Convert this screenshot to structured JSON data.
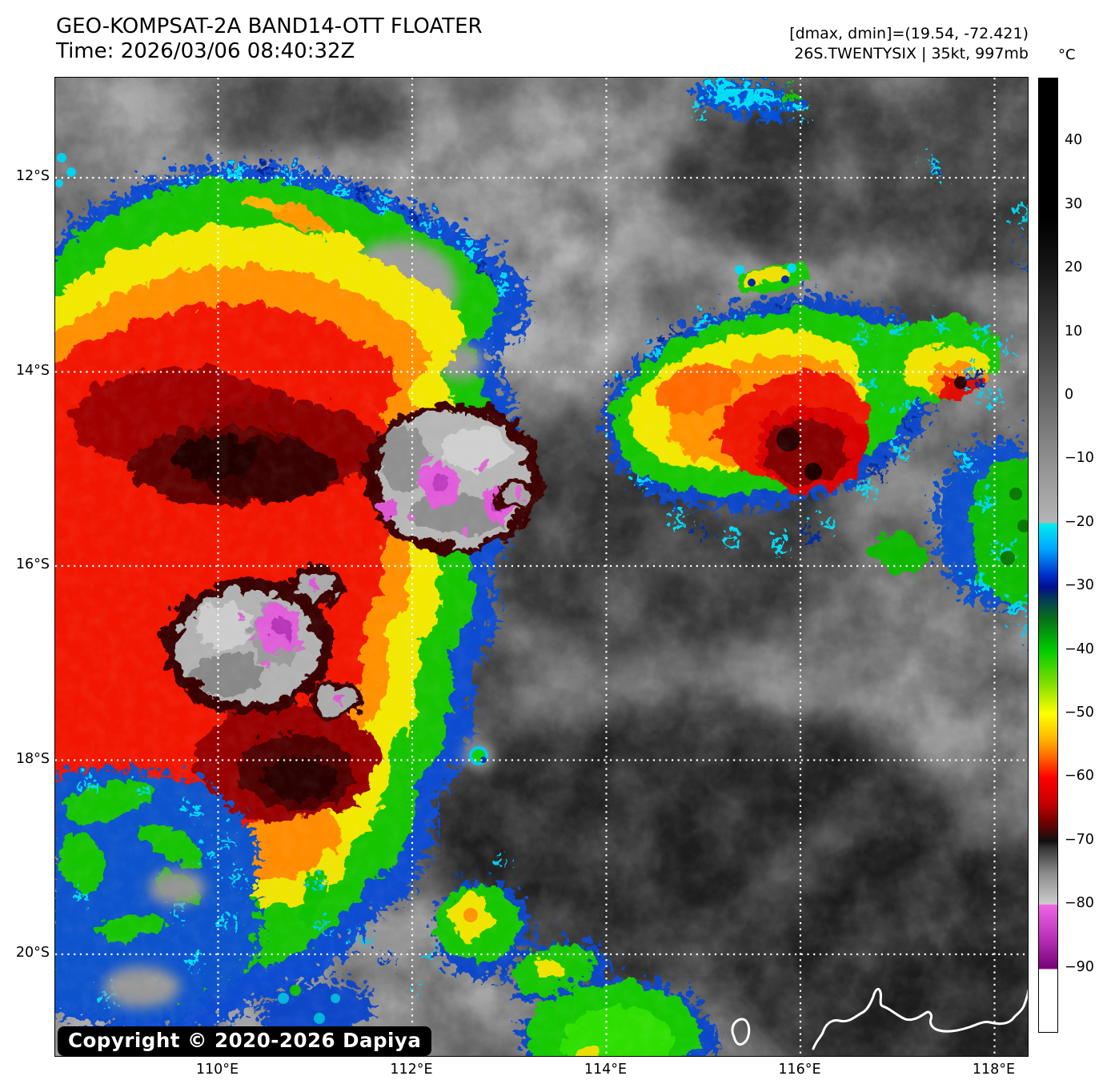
{
  "header": {
    "title": "GEO-KOMPSAT-2A BAND14-OTT FLOATER",
    "time_line": "Time: 2026/03/06 08:40:32Z"
  },
  "annotations": {
    "range_line": "[dmax, dmin]=(19.54, -72.421)",
    "storm_line": "26S.TWENTYSIX | 35kt, 997mb"
  },
  "footer": {
    "copyright": "Copyright © 2020-2026 Dapiya"
  },
  "colorbar": {
    "unit": "°C",
    "top_value": 50,
    "bottom_value": -100,
    "ticks": [
      40,
      30,
      20,
      10,
      0,
      -10,
      -20,
      -30,
      -40,
      -50,
      -60,
      -70,
      -80,
      -90
    ],
    "palette": [
      {
        "t": 50,
        "c": "#000000"
      },
      {
        "t": 28,
        "c": "#000000"
      },
      {
        "t": 20,
        "c": "#161616"
      },
      {
        "t": 10,
        "c": "#3c3c3c"
      },
      {
        "t": 0,
        "c": "#656565"
      },
      {
        "t": -10,
        "c": "#8f8f8f"
      },
      {
        "t": -19.9,
        "c": "#b5b5b5"
      },
      {
        "t": -20,
        "c": "#00eeee"
      },
      {
        "t": -24,
        "c": "#00a6ff"
      },
      {
        "t": -28,
        "c": "#0033cc"
      },
      {
        "t": -30,
        "c": "#000e90"
      },
      {
        "t": -32,
        "c": "#053c55"
      },
      {
        "t": -35,
        "c": "#067018"
      },
      {
        "t": -40,
        "c": "#00cc00"
      },
      {
        "t": -45,
        "c": "#7ddd00"
      },
      {
        "t": -50,
        "c": "#ffff00"
      },
      {
        "t": -54,
        "c": "#ffb400"
      },
      {
        "t": -57,
        "c": "#ff6000"
      },
      {
        "t": -60,
        "c": "#ff0000"
      },
      {
        "t": -64,
        "c": "#c80000"
      },
      {
        "t": -67,
        "c": "#730000"
      },
      {
        "t": -70,
        "c": "#101010"
      },
      {
        "t": -71,
        "c": "#343434"
      },
      {
        "t": -75,
        "c": "#8a8a8a"
      },
      {
        "t": -79.9,
        "c": "#cdcdcd"
      },
      {
        "t": -80,
        "c": "#ee66e2"
      },
      {
        "t": -85,
        "c": "#bb33bb"
      },
      {
        "t": -90,
        "c": "#770077"
      },
      {
        "t": -90.2,
        "c": "#ffffff"
      },
      {
        "t": -100,
        "c": "#ffffff"
      }
    ]
  },
  "map_axes": {
    "lat_ticks": [
      {
        "deg": -12,
        "label": "12°S"
      },
      {
        "deg": -14,
        "label": "14°S"
      },
      {
        "deg": -16,
        "label": "16°S"
      },
      {
        "deg": -18,
        "label": "18°S"
      },
      {
        "deg": -20,
        "label": "20°S"
      }
    ],
    "lon_ticks": [
      {
        "deg": 110,
        "label": "110°E"
      },
      {
        "deg": 112,
        "label": "112°E"
      },
      {
        "deg": 114,
        "label": "114°E"
      },
      {
        "deg": 116,
        "label": "116°E"
      },
      {
        "deg": 118,
        "label": "118°E"
      }
    ]
  }
}
